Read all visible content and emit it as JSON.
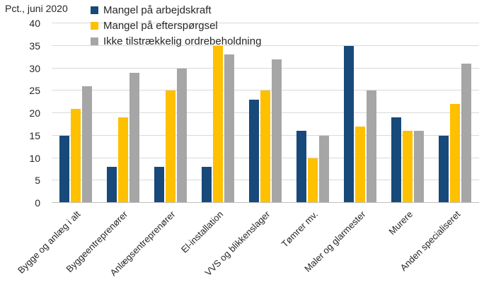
{
  "chart_data": {
    "type": "bar",
    "title": "Pct., juni 2020",
    "categories": [
      "Bygge og anlæg i alt",
      "Byggeentreprenører",
      "Anlægsentreprenører",
      "El-installation",
      "VVS og blikkenslager",
      "Tømrer mv.",
      "Maler og glarmester",
      "Murere",
      "Anden specialiseret"
    ],
    "series": [
      {
        "name": "Mangel på arbejdskraft",
        "color": "#17497b",
        "values": [
          15,
          8,
          8,
          8,
          23,
          16,
          35,
          19,
          15
        ]
      },
      {
        "name": "Mangel på efterspørgsel",
        "color": "#ffc000",
        "values": [
          21,
          19,
          25,
          35,
          25,
          10,
          17,
          16,
          22
        ]
      },
      {
        "name": "Ikke tilstrækkelig ordrebeholdning",
        "color": "#a6a6a6",
        "values": [
          26,
          29,
          30,
          33,
          32,
          15,
          25,
          16,
          31
        ]
      }
    ],
    "ylim": [
      0,
      40
    ],
    "yticks": [
      0,
      5,
      10,
      15,
      20,
      25,
      30,
      35,
      40
    ],
    "xlabel": "",
    "ylabel": "",
    "grid": true,
    "legend_position": "top-left",
    "colors": {
      "gridline": "#d9d9d9",
      "axis_line": "#bfbfbf",
      "text": "#262626",
      "background": "#ffffff"
    }
  }
}
